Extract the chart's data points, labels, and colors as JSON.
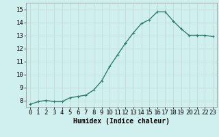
{
  "x": [
    0,
    1,
    2,
    3,
    4,
    5,
    6,
    7,
    8,
    9,
    10,
    11,
    12,
    13,
    14,
    15,
    16,
    17,
    18,
    19,
    20,
    21,
    22,
    23
  ],
  "y": [
    7.7,
    7.9,
    8.0,
    7.9,
    7.9,
    8.2,
    8.3,
    8.4,
    8.8,
    9.5,
    10.6,
    11.5,
    12.4,
    13.2,
    13.9,
    14.2,
    14.8,
    14.8,
    14.1,
    13.5,
    13.0,
    13.0,
    13.0,
    12.9
  ],
  "line_color": "#2e7d6e",
  "marker": "+",
  "marker_size": 3,
  "bg_color": "#cff0ee",
  "grid_color": "#c0d8d4",
  "xlabel": "Humidex (Indice chaleur)",
  "xlim": [
    -0.5,
    23.5
  ],
  "ylim": [
    7.5,
    15.5
  ],
  "yticks": [
    8,
    9,
    10,
    11,
    12,
    13,
    14,
    15
  ],
  "xticks": [
    0,
    1,
    2,
    3,
    4,
    5,
    6,
    7,
    8,
    9,
    10,
    11,
    12,
    13,
    14,
    15,
    16,
    17,
    18,
    19,
    20,
    21,
    22,
    23
  ],
  "xlabel_fontsize": 7,
  "tick_fontsize": 6.5,
  "line_width": 1.0,
  "marker_edge_width": 0.8
}
